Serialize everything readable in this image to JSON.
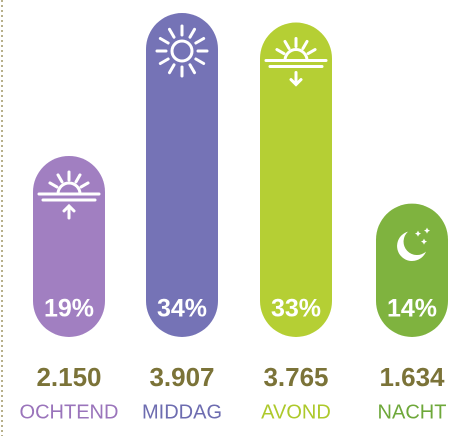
{
  "chart_data": {
    "type": "bar",
    "categories": [
      "OCHTEND",
      "MIDDAG",
      "AVOND",
      "NACHT"
    ],
    "values": [
      19,
      34,
      33,
      14
    ],
    "value_labels": [
      "19%",
      "34%",
      "33%",
      "14%"
    ],
    "totals": [
      2150,
      3907,
      3765,
      1634
    ],
    "total_labels": [
      "2.150",
      "3.907",
      "3.765",
      "1.634"
    ],
    "colors": [
      "#a17fc1",
      "#7573b6",
      "#b5cf34",
      "#7fb33f"
    ],
    "label_colors": [
      "#9a74bb",
      "#6d6cb0",
      "#adc92b",
      "#6ea83a"
    ]
  }
}
